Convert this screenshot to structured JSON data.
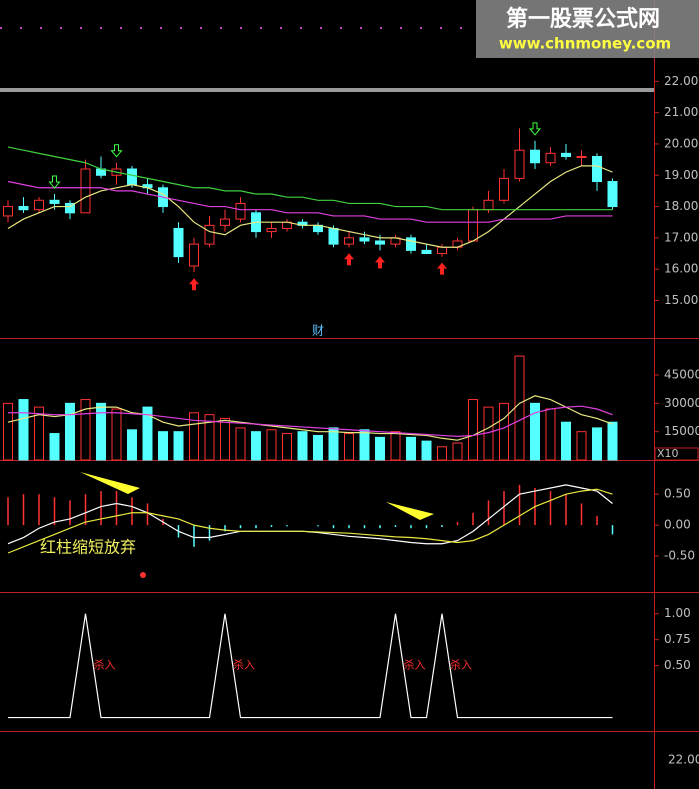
{
  "watermark": {
    "title": "第一股票公式网",
    "url": "www.chnmoney.com"
  },
  "marker_label": "财",
  "footer_tick": "22.00",
  "chart_data": [
    {
      "type": "candlestick",
      "up_color": "#ff3232",
      "down_color": "#54ffff",
      "ylim": [
        13.8,
        24.6
      ],
      "yticks": [
        {
          "value": 22,
          "label": "22.00"
        },
        {
          "value": 21,
          "label": "21.00"
        },
        {
          "value": 20,
          "label": "20.00"
        },
        {
          "value": 19,
          "label": "19.00"
        },
        {
          "value": 18,
          "label": "18.00"
        },
        {
          "value": 17,
          "label": "17.00"
        },
        {
          "value": 16,
          "label": "16.00"
        },
        {
          "value": 15,
          "label": "15.00"
        }
      ],
      "ohlc": [
        [
          17.7,
          18.2,
          17.5,
          18.0
        ],
        [
          18.0,
          18.3,
          17.8,
          17.9
        ],
        [
          17.9,
          18.3,
          17.8,
          18.2
        ],
        [
          18.2,
          18.4,
          17.9,
          18.1
        ],
        [
          18.1,
          18.2,
          17.6,
          17.8
        ],
        [
          17.8,
          19.5,
          17.8,
          19.2
        ],
        [
          19.2,
          19.6,
          18.9,
          19.0
        ],
        [
          19.0,
          19.4,
          18.7,
          19.2
        ],
        [
          19.2,
          19.3,
          18.6,
          18.7
        ],
        [
          18.7,
          18.9,
          18.4,
          18.6
        ],
        [
          18.6,
          18.7,
          17.8,
          18.0
        ],
        [
          17.3,
          17.5,
          16.2,
          16.4
        ],
        [
          16.1,
          17.0,
          15.9,
          16.8
        ],
        [
          16.8,
          17.7,
          16.7,
          17.4
        ],
        [
          17.4,
          17.9,
          17.2,
          17.6
        ],
        [
          17.6,
          18.3,
          17.5,
          18.1
        ],
        [
          17.8,
          17.9,
          17.0,
          17.2
        ],
        [
          17.2,
          17.5,
          17.0,
          17.3
        ],
        [
          17.3,
          17.6,
          17.2,
          17.5
        ],
        [
          17.5,
          17.6,
          17.3,
          17.4
        ],
        [
          17.4,
          17.5,
          17.1,
          17.2
        ],
        [
          17.3,
          17.4,
          16.7,
          16.8
        ],
        [
          16.8,
          17.2,
          16.7,
          17.0
        ],
        [
          17.0,
          17.2,
          16.8,
          16.9
        ],
        [
          16.9,
          17.1,
          16.6,
          16.8
        ],
        [
          16.8,
          17.1,
          16.7,
          17.0
        ],
        [
          17.0,
          17.1,
          16.5,
          16.6
        ],
        [
          16.6,
          16.8,
          16.5,
          16.5
        ],
        [
          16.5,
          16.8,
          16.4,
          16.7
        ],
        [
          16.7,
          17.0,
          16.6,
          16.9
        ],
        [
          16.9,
          18.0,
          16.9,
          17.9
        ],
        [
          17.9,
          18.5,
          17.8,
          18.2
        ],
        [
          18.2,
          19.2,
          18.1,
          18.9
        ],
        [
          18.9,
          20.5,
          18.8,
          19.8
        ],
        [
          19.8,
          20.1,
          19.2,
          19.4
        ],
        [
          19.4,
          19.9,
          19.3,
          19.7
        ],
        [
          19.7,
          20.0,
          19.5,
          19.6
        ],
        [
          19.6,
          19.8,
          19.3,
          19.6
        ],
        [
          19.6,
          19.7,
          18.5,
          18.8
        ],
        [
          18.8,
          18.9,
          17.9,
          18.0
        ]
      ],
      "buy_signals": [
        12,
        22,
        24,
        28
      ],
      "buy_color": "#ff2020",
      "sell_signals": [
        3,
        7,
        34
      ],
      "sell_color": "#40ff40",
      "series": [
        {
          "color": "#e8e880",
          "values": [
            17.3,
            17.6,
            17.8,
            18.0,
            18.0,
            18.3,
            18.5,
            18.6,
            18.7,
            18.6,
            18.4,
            18.0,
            17.5,
            17.2,
            17.1,
            17.4,
            17.5,
            17.5,
            17.5,
            17.4,
            17.4,
            17.3,
            17.2,
            17.1,
            17.0,
            17.0,
            16.9,
            16.8,
            16.7,
            16.7,
            16.9,
            17.2,
            17.6,
            18.0,
            18.4,
            18.8,
            19.1,
            19.3,
            19.3,
            19.1
          ]
        },
        {
          "color": "#40d040",
          "values": [
            19.9,
            19.8,
            19.7,
            19.6,
            19.5,
            19.4,
            19.2,
            19.1,
            19.0,
            18.9,
            18.8,
            18.7,
            18.6,
            18.6,
            18.5,
            18.5,
            18.4,
            18.4,
            18.3,
            18.3,
            18.2,
            18.2,
            18.1,
            18.1,
            18.1,
            18.0,
            18.0,
            18.0,
            17.9,
            17.9,
            17.9,
            17.9,
            17.9,
            17.9,
            17.9,
            17.9,
            17.9,
            17.9,
            17.9,
            17.9
          ]
        },
        {
          "color": "#e040e0",
          "values": [
            18.8,
            18.7,
            18.6,
            18.6,
            18.6,
            18.6,
            18.6,
            18.5,
            18.5,
            18.4,
            18.3,
            18.2,
            18.1,
            18.0,
            18.0,
            17.9,
            17.9,
            17.9,
            17.8,
            17.8,
            17.8,
            17.7,
            17.7,
            17.7,
            17.6,
            17.6,
            17.6,
            17.5,
            17.5,
            17.5,
            17.5,
            17.5,
            17.6,
            17.6,
            17.6,
            17.6,
            17.7,
            17.7,
            17.7,
            17.7
          ]
        }
      ]
    },
    {
      "type": "volume",
      "unit_label": "X10",
      "ylim": [
        0,
        63000
      ],
      "yticks": [
        45000,
        30000,
        15000
      ],
      "values": [
        30000,
        32000,
        28000,
        14000,
        30000,
        32000,
        30000,
        27000,
        16000,
        28000,
        15000,
        15000,
        25000,
        24000,
        22000,
        17000,
        15000,
        16000,
        14000,
        15000,
        13000,
        17000,
        14000,
        16000,
        12000,
        15000,
        12000,
        10000,
        7000,
        9000,
        32000,
        28000,
        30000,
        55000,
        30000,
        27000,
        20000,
        15000,
        17000,
        20000
      ],
      "series": [
        {
          "color": "#e8e880",
          "values": [
            20000,
            22000,
            24000,
            23000,
            24000,
            27000,
            28000,
            28000,
            25000,
            24000,
            20000,
            18000,
            19000,
            20000,
            21000,
            20000,
            19000,
            18000,
            17000,
            16000,
            15000,
            15000,
            14500,
            14500,
            14000,
            14000,
            13500,
            13000,
            11500,
            10500,
            13000,
            17000,
            22000,
            30000,
            34000,
            32000,
            28000,
            24000,
            22000,
            19000
          ]
        },
        {
          "color": "#e040e0",
          "values": [
            25000,
            25000,
            24500,
            24000,
            24000,
            24500,
            25000,
            25000,
            24500,
            24000,
            23000,
            22000,
            21000,
            20500,
            20000,
            19500,
            19000,
            18500,
            18000,
            17500,
            17000,
            16500,
            16000,
            15500,
            15000,
            14500,
            14000,
            13500,
            13000,
            12500,
            13000,
            14500,
            17000,
            21000,
            25000,
            27000,
            28000,
            28500,
            27000,
            24000
          ]
        }
      ]
    },
    {
      "type": "macd",
      "ylim": [
        -1.08,
        1.02
      ],
      "yticks": [
        {
          "value": 0.5,
          "label": "0.50"
        },
        {
          "value": 0,
          "label": "0.00"
        },
        {
          "value": -0.5,
          "label": "-0.50"
        }
      ],
      "annotation": "红柱缩短放弃",
      "values": [
        0.45,
        0.5,
        0.5,
        0.45,
        0.4,
        0.5,
        0.55,
        0.55,
        0.45,
        0.35,
        0.1,
        -0.2,
        -0.35,
        -0.25,
        -0.1,
        -0.05,
        -0.05,
        -0.03,
        -0.02,
        0.0,
        -0.02,
        -0.05,
        -0.05,
        -0.05,
        -0.05,
        -0.03,
        -0.05,
        -0.05,
        -0.03,
        0.05,
        0.2,
        0.4,
        0.55,
        0.65,
        0.6,
        0.55,
        0.5,
        0.35,
        0.15,
        -0.15
      ],
      "series": [
        {
          "color": "#ffffff",
          "values": [
            -0.3,
            -0.2,
            -0.05,
            0.05,
            0.1,
            0.2,
            0.3,
            0.35,
            0.3,
            0.2,
            0.05,
            -0.1,
            -0.2,
            -0.2,
            -0.15,
            -0.1,
            -0.1,
            -0.1,
            -0.1,
            -0.1,
            -0.12,
            -0.15,
            -0.18,
            -0.2,
            -0.22,
            -0.25,
            -0.28,
            -0.3,
            -0.3,
            -0.25,
            -0.1,
            0.1,
            0.3,
            0.5,
            0.55,
            0.6,
            0.65,
            0.6,
            0.55,
            0.35
          ]
        },
        {
          "color": "#e8e840",
          "values": [
            -0.45,
            -0.35,
            -0.25,
            -0.15,
            -0.05,
            0.05,
            0.1,
            0.15,
            0.2,
            0.2,
            0.15,
            0.1,
            0.0,
            -0.05,
            -0.08,
            -0.1,
            -0.1,
            -0.1,
            -0.1,
            -0.1,
            -0.11,
            -0.12,
            -0.13,
            -0.15,
            -0.17,
            -0.19,
            -0.2,
            -0.22,
            -0.25,
            -0.28,
            -0.25,
            -0.15,
            0.0,
            0.15,
            0.3,
            0.4,
            0.5,
            0.55,
            0.58,
            0.5
          ]
        }
      ]
    },
    {
      "type": "signal",
      "color": "#ffffff",
      "ylim": [
        -0.12,
        1.19
      ],
      "yticks": [
        {
          "value": 1,
          "label": "1.00"
        },
        {
          "value": 0.75,
          "label": "0.75"
        },
        {
          "value": 0.5,
          "label": "0.50"
        }
      ],
      "values": [
        0,
        0,
        0,
        0,
        0,
        1,
        0,
        0,
        0,
        0,
        0,
        0,
        0,
        0,
        1,
        0,
        0,
        0,
        0,
        0,
        0,
        0,
        0,
        0,
        0,
        1,
        0,
        0,
        1,
        0,
        0,
        0,
        0,
        0,
        0,
        0,
        0,
        0,
        0,
        0
      ],
      "annotations": [
        {
          "index": 5,
          "text": "杀入"
        },
        {
          "index": 14,
          "text": "杀入"
        },
        {
          "index": 25,
          "text": "杀入"
        },
        {
          "index": 28,
          "text": "杀入"
        }
      ]
    }
  ]
}
